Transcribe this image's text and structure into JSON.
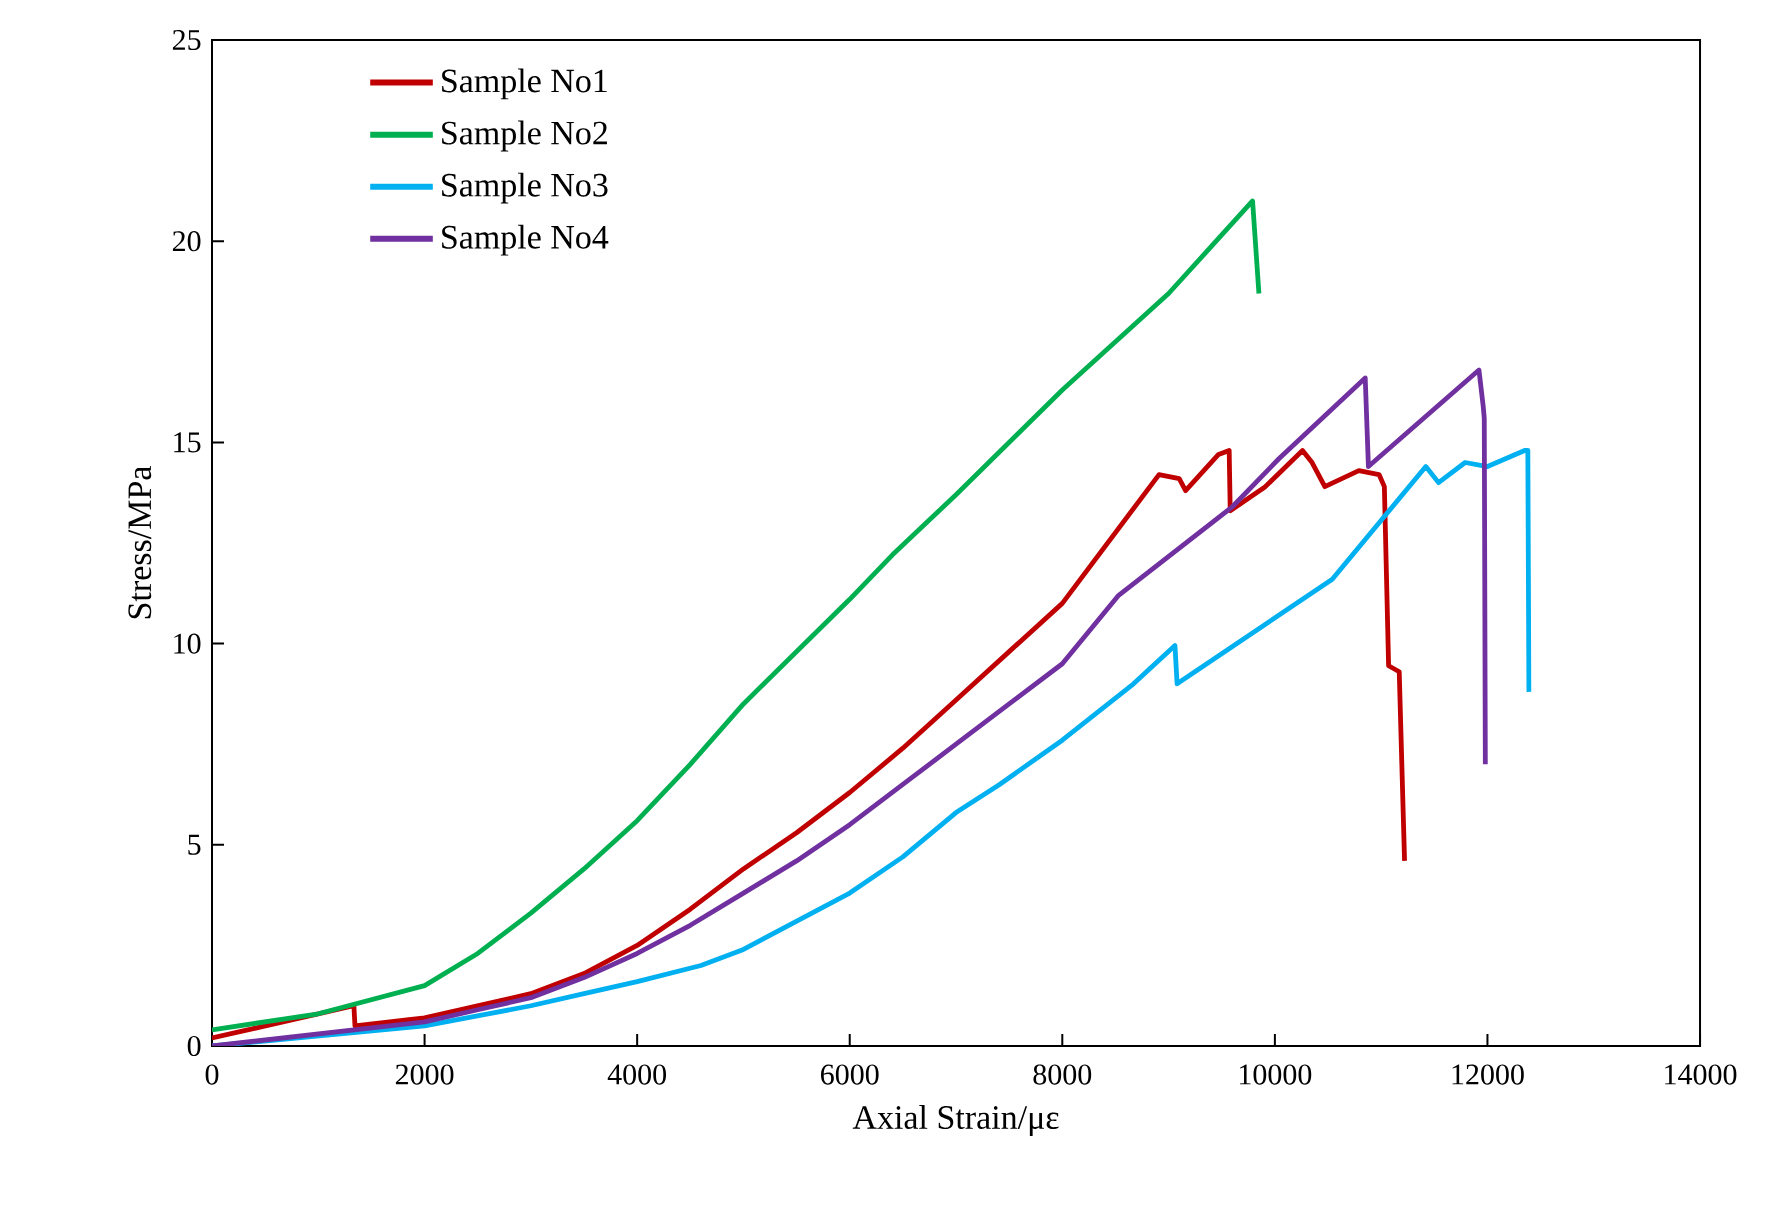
{
  "chart_data": {
    "type": "line",
    "xlabel": "Axial Strain/με",
    "ylabel": "Stress/MPa",
    "xlim": [
      0,
      14000
    ],
    "ylim": [
      0,
      25
    ],
    "xticks": [
      0,
      2000,
      4000,
      6000,
      8000,
      10000,
      12000,
      14000
    ],
    "yticks": [
      0,
      5,
      10,
      15,
      20,
      25
    ],
    "grid": false,
    "legend": "top left",
    "marker": "none",
    "line_style": "solid",
    "series": [
      {
        "name": "Sample No1",
        "color": "#c00000",
        "x": [
          0,
          1335,
          1345,
          2000,
          2500,
          3000,
          3500,
          4000,
          4500,
          5000,
          5500,
          6000,
          6500,
          7000,
          7500,
          8000,
          8910,
          9100,
          9160,
          9470,
          9570,
          9580,
          9910,
          10260,
          10350,
          10470,
          10790,
          10980,
          11030,
          11070,
          11170,
          11220
        ],
        "values": [
          0.2,
          1.0,
          0.5,
          0.7,
          1.0,
          1.3,
          1.8,
          2.5,
          3.4,
          4.4,
          5.3,
          6.3,
          7.4,
          8.6,
          9.8,
          11.0,
          14.2,
          14.1,
          13.8,
          14.7,
          14.8,
          13.3,
          13.9,
          14.8,
          14.5,
          13.9,
          14.3,
          14.2,
          13.9,
          9.45,
          9.3,
          4.6
        ]
      },
      {
        "name": "Sample No2",
        "color": "#00b050",
        "x": [
          0,
          1000,
          2000,
          2500,
          3000,
          3500,
          4000,
          4500,
          5000,
          5500,
          6000,
          6400,
          7000,
          8000,
          9000,
          9790,
          9850
        ],
        "values": [
          0.4,
          0.8,
          1.5,
          2.3,
          3.3,
          4.4,
          5.6,
          7.0,
          8.5,
          9.8,
          11.1,
          12.2,
          13.7,
          16.3,
          18.7,
          21.0,
          18.7
        ]
      },
      {
        "name": "Sample No3",
        "color": "#00b0f0",
        "x": [
          0,
          2000,
          2500,
          3000,
          3500,
          4000,
          4600,
          5000,
          5500,
          6000,
          6500,
          7000,
          7410,
          8000,
          8670,
          9060,
          9080,
          10540,
          11420,
          11540,
          11790,
          12000,
          12350,
          12380,
          12390
        ],
        "values": [
          0,
          0.5,
          0.75,
          1.0,
          1.3,
          1.6,
          2.0,
          2.4,
          3.1,
          3.8,
          4.7,
          5.8,
          6.5,
          7.6,
          9.0,
          9.95,
          9.0,
          11.6,
          14.4,
          14.0,
          14.5,
          14.4,
          14.8,
          14.8,
          8.8
        ]
      },
      {
        "name": "Sample No4",
        "color": "#7030a0",
        "x": [
          0,
          2000,
          2500,
          3000,
          3500,
          4000,
          4500,
          5000,
          5500,
          6000,
          6500,
          7000,
          7500,
          8000,
          8530,
          9600,
          10040,
          10850,
          10880,
          11920,
          11960,
          11970,
          11980
        ],
        "values": [
          0,
          0.6,
          0.9,
          1.2,
          1.7,
          2.3,
          3.0,
          3.8,
          4.6,
          5.5,
          6.5,
          7.5,
          8.5,
          9.5,
          11.2,
          13.4,
          14.6,
          16.6,
          14.4,
          16.8,
          15.9,
          15.6,
          7.0
        ]
      }
    ]
  }
}
